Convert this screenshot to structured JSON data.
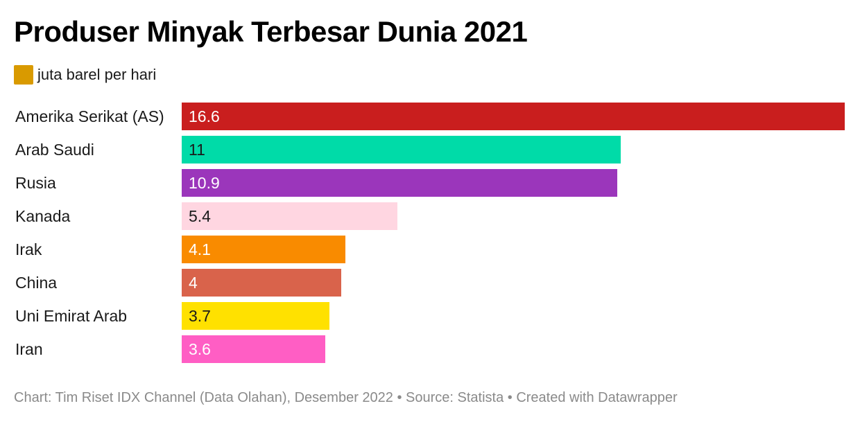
{
  "chart_data": {
    "type": "bar",
    "orientation": "horizontal",
    "title": "Produser Minyak Terbesar Dunia 2021",
    "legend": {
      "label": "juta barel per hari",
      "color": "#d99a00",
      "placement": "top-left"
    },
    "categories": [
      "Amerika Serikat (AS)",
      "Arab Saudi",
      "Rusia",
      "Kanada",
      "Irak",
      "China",
      "Uni Emirat Arab",
      "Iran"
    ],
    "values": [
      16.6,
      11,
      10.9,
      5.4,
      4.1,
      4,
      3.7,
      3.6
    ],
    "value_labels": [
      "16.6",
      "11",
      "10.9",
      "5.4",
      "4.1",
      "4",
      "3.7",
      "3.6"
    ],
    "colors": [
      "#c91e1e",
      "#00dba8",
      "#9b36bb",
      "#ffd6e1",
      "#f98b00",
      "#d9634b",
      "#ffe100",
      "#ff5ec4"
    ],
    "label_colors": [
      "#ffffff",
      "#1a1a1a",
      "#ffffff",
      "#1a1a1a",
      "#ffffff",
      "#ffffff",
      "#1a1a1a",
      "#ffffff"
    ],
    "xlim": [
      0,
      16.6
    ],
    "grid": false
  },
  "footer": "Chart: Tim Riset IDX Channel (Data Olahan), Desember 2022 • Source: Statista • Created with Datawrapper"
}
